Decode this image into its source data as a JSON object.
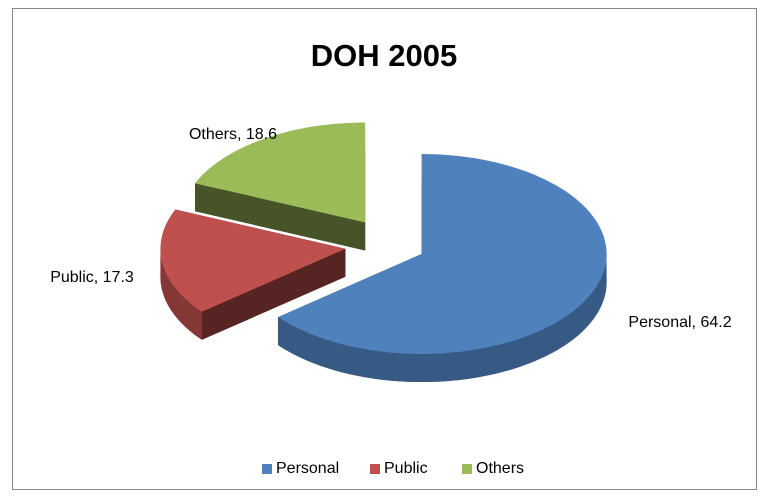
{
  "chart_data": {
    "type": "pie",
    "title": "DOH 2005",
    "categories": [
      "Personal",
      "Public",
      "Others"
    ],
    "values": [
      64.2,
      17.3,
      18.6
    ],
    "value_labels": [
      "Personal, 64.2",
      "Public, 17.3",
      "Others, 18.6"
    ],
    "colors": [
      "#4f81bd",
      "#c0504d",
      "#9bbb59"
    ],
    "legend": "bottom"
  }
}
